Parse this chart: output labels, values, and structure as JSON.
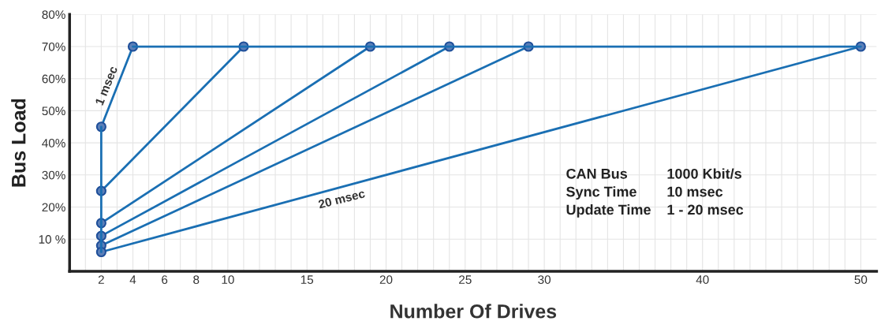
{
  "chart_data": {
    "type": "line",
    "xlabel": "Number Of Drives",
    "ylabel": "Bus Load",
    "series": [
      {
        "color": "#1a6fb3",
        "x": [
          2,
          4
        ],
        "values": [
          45,
          70
        ]
      },
      {
        "color": "#1a6fb3",
        "x": [
          2,
          11
        ],
        "values": [
          25,
          70
        ]
      },
      {
        "color": "#1a6fb3",
        "x": [
          2,
          19
        ],
        "values": [
          15,
          70
        ]
      },
      {
        "color": "#1a6fb3",
        "x": [
          2,
          24
        ],
        "values": [
          11,
          70
        ]
      },
      {
        "color": "#1a6fb3",
        "x": [
          2,
          29
        ],
        "values": [
          8,
          70
        ]
      },
      {
        "color": "#1a6fb3",
        "x": [
          2,
          50
        ],
        "values": [
          6,
          70
        ]
      },
      {
        "color": "#1a6fb3",
        "x": [
          2,
          2,
          2,
          2,
          2,
          2
        ],
        "values": [
          6,
          8,
          11,
          15,
          25,
          45
        ],
        "marker": "none"
      },
      {
        "color": "#1a6fb3",
        "x": [
          4,
          11,
          19,
          24,
          29,
          50
        ],
        "values": [
          70,
          70,
          70,
          70,
          70,
          70
        ],
        "marker": "none"
      }
    ],
    "marker": "circle",
    "line_style": "solid",
    "grid": true,
    "legend": false,
    "xlim": [
      0,
      51
    ],
    "ylim": [
      0,
      80
    ],
    "xticks": [
      {
        "value": 1,
        "label": null
      },
      2,
      {
        "value": 3,
        "label": null
      },
      4,
      {
        "value": 5,
        "label": null
      },
      6,
      {
        "value": 7,
        "label": null
      },
      8,
      {
        "value": 9,
        "label": null
      },
      10,
      {
        "value": 11,
        "label": null
      },
      {
        "value": 12,
        "label": null
      },
      {
        "value": 13,
        "label": null
      },
      {
        "value": 14,
        "label": null
      },
      15,
      {
        "value": 16,
        "label": null
      },
      {
        "value": 17,
        "label": null
      },
      {
        "value": 18,
        "label": null
      },
      {
        "value": 19,
        "label": null
      },
      20,
      {
        "value": 21,
        "label": null
      },
      {
        "value": 22,
        "label": null
      },
      {
        "value": 23,
        "label": null
      },
      {
        "value": 24,
        "label": null
      },
      25,
      {
        "value": 26,
        "label": null
      },
      {
        "value": 27,
        "label": null
      },
      {
        "value": 28,
        "label": null
      },
      {
        "value": 29,
        "label": null
      },
      30,
      {
        "value": 31,
        "label": null
      },
      {
        "value": 32,
        "label": null
      },
      {
        "value": 33,
        "label": null
      },
      {
        "value": 34,
        "label": null
      },
      {
        "value": 35,
        "label": null
      },
      {
        "value": 36,
        "label": null
      },
      {
        "value": 37,
        "label": null
      },
      {
        "value": 38,
        "label": null
      },
      {
        "value": 39,
        "label": null
      },
      40,
      {
        "value": 41,
        "label": null
      },
      {
        "value": 42,
        "label": null
      },
      {
        "value": 43,
        "label": null
      },
      {
        "value": 44,
        "label": null
      },
      {
        "value": 45,
        "label": null
      },
      {
        "value": 46,
        "label": null
      },
      {
        "value": 47,
        "label": null
      },
      {
        "value": 48,
        "label": null
      },
      {
        "value": 49,
        "label": null
      },
      50
    ],
    "yticks": [
      {
        "value": 10,
        "label": "10 %"
      },
      {
        "value": 20,
        "label": "20%"
      },
      {
        "value": 30,
        "label": "30%"
      },
      {
        "value": 40,
        "label": "40%"
      },
      {
        "value": 50,
        "label": "50%"
      },
      {
        "value": 60,
        "label": "60%"
      },
      {
        "value": 70,
        "label": "70%"
      },
      {
        "value": 80,
        "label": "80%"
      }
    ],
    "annotations": [
      {
        "text": "1 msec",
        "x": 3,
        "y": 57
      },
      {
        "text": "20 msec",
        "x": 17,
        "y": 26
      },
      "CAN Bus",
      "1000 Kbit/s",
      "Sync Time",
      "10 msec",
      "Update Time",
      "1 - 20 msec"
    ]
  }
}
